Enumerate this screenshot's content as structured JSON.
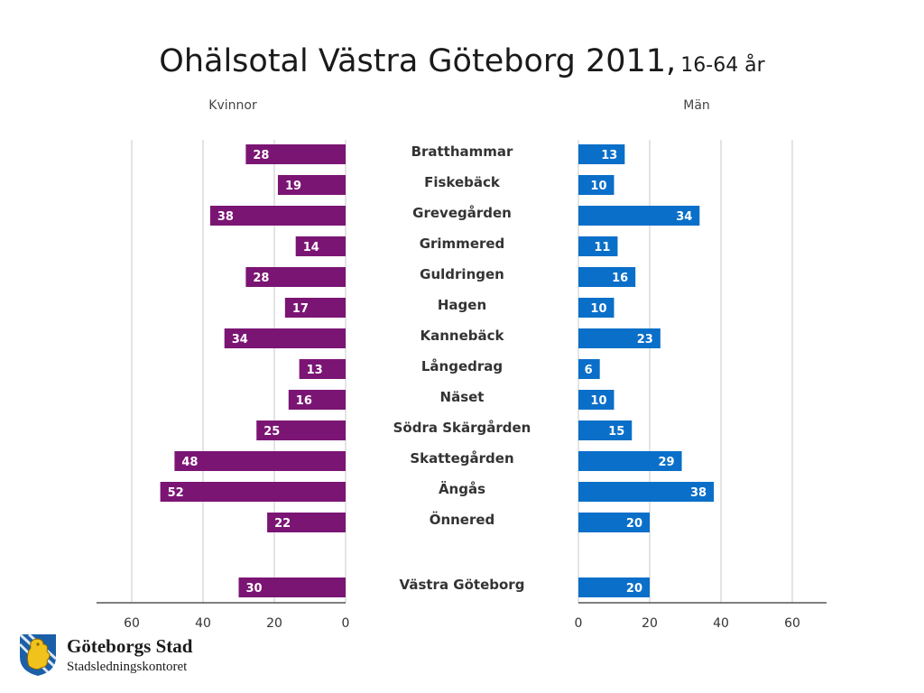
{
  "title": {
    "main": "Ohälsotal Västra Göteborg 2011,",
    "sub": "16-64 år"
  },
  "colors": {
    "women": "#7B1574",
    "men": "#0A6FC9",
    "grid": "#c8c8c8",
    "axis": "#555555",
    "text": "#333333"
  },
  "chart_data": {
    "type": "bar",
    "title": "Ohälsotal Västra Göteborg 2011, 16-64 år",
    "categories": [
      "Bratthammar",
      "Fiskebäck",
      "Grevegården",
      "Grimmered",
      "Guldringen",
      "Hagen",
      "Kannebäck",
      "Långedrag",
      "Näset",
      "Södra Skärgården",
      "Skattegården",
      "Ängås",
      "Önnered",
      "Västra Göteborg"
    ],
    "series": [
      {
        "name": "Kvinnor",
        "values": [
          28,
          19,
          38,
          14,
          28,
          17,
          34,
          13,
          16,
          25,
          48,
          52,
          22,
          30
        ]
      },
      {
        "name": "Män",
        "values": [
          13,
          10,
          34,
          11,
          16,
          10,
          23,
          6,
          10,
          15,
          29,
          38,
          20,
          20
        ]
      }
    ],
    "xlim_women": [
      0,
      70
    ],
    "xlim_men": [
      0,
      70
    ],
    "ticks": [
      "60",
      "40",
      "20",
      "0"
    ],
    "ticks_men": [
      "0",
      "20",
      "40",
      "60"
    ],
    "grid": true
  },
  "logo": {
    "name": "Göteborgs Stad",
    "dept": "Stadsledningskontoret"
  }
}
